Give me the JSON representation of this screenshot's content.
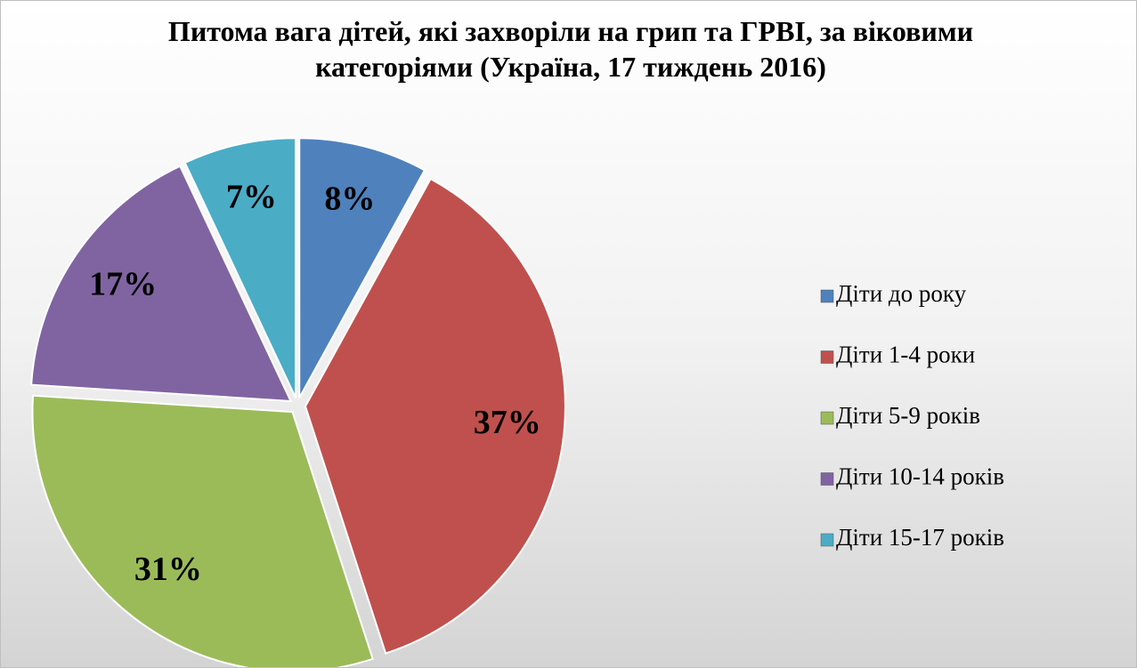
{
  "chart_data": {
    "type": "pie",
    "title": "Питома вага дітей, які захворіли на грип та ГРВІ, за віковими категоріями (Україна, 17 тиждень 2016)",
    "categories": [
      "Діти до року",
      "Діти 1-4 роки",
      "Діти 5-9 років",
      "Діти 10-14 років",
      "Діти 15-17 років"
    ],
    "values": [
      8,
      37,
      31,
      17,
      7
    ],
    "value_labels": [
      "8%",
      "37%",
      "31%",
      "17%",
      "7%"
    ],
    "colors": [
      "#4f81bd",
      "#c0504d",
      "#9bbb59",
      "#8064a2",
      "#4bacc6"
    ],
    "legend": "right"
  }
}
